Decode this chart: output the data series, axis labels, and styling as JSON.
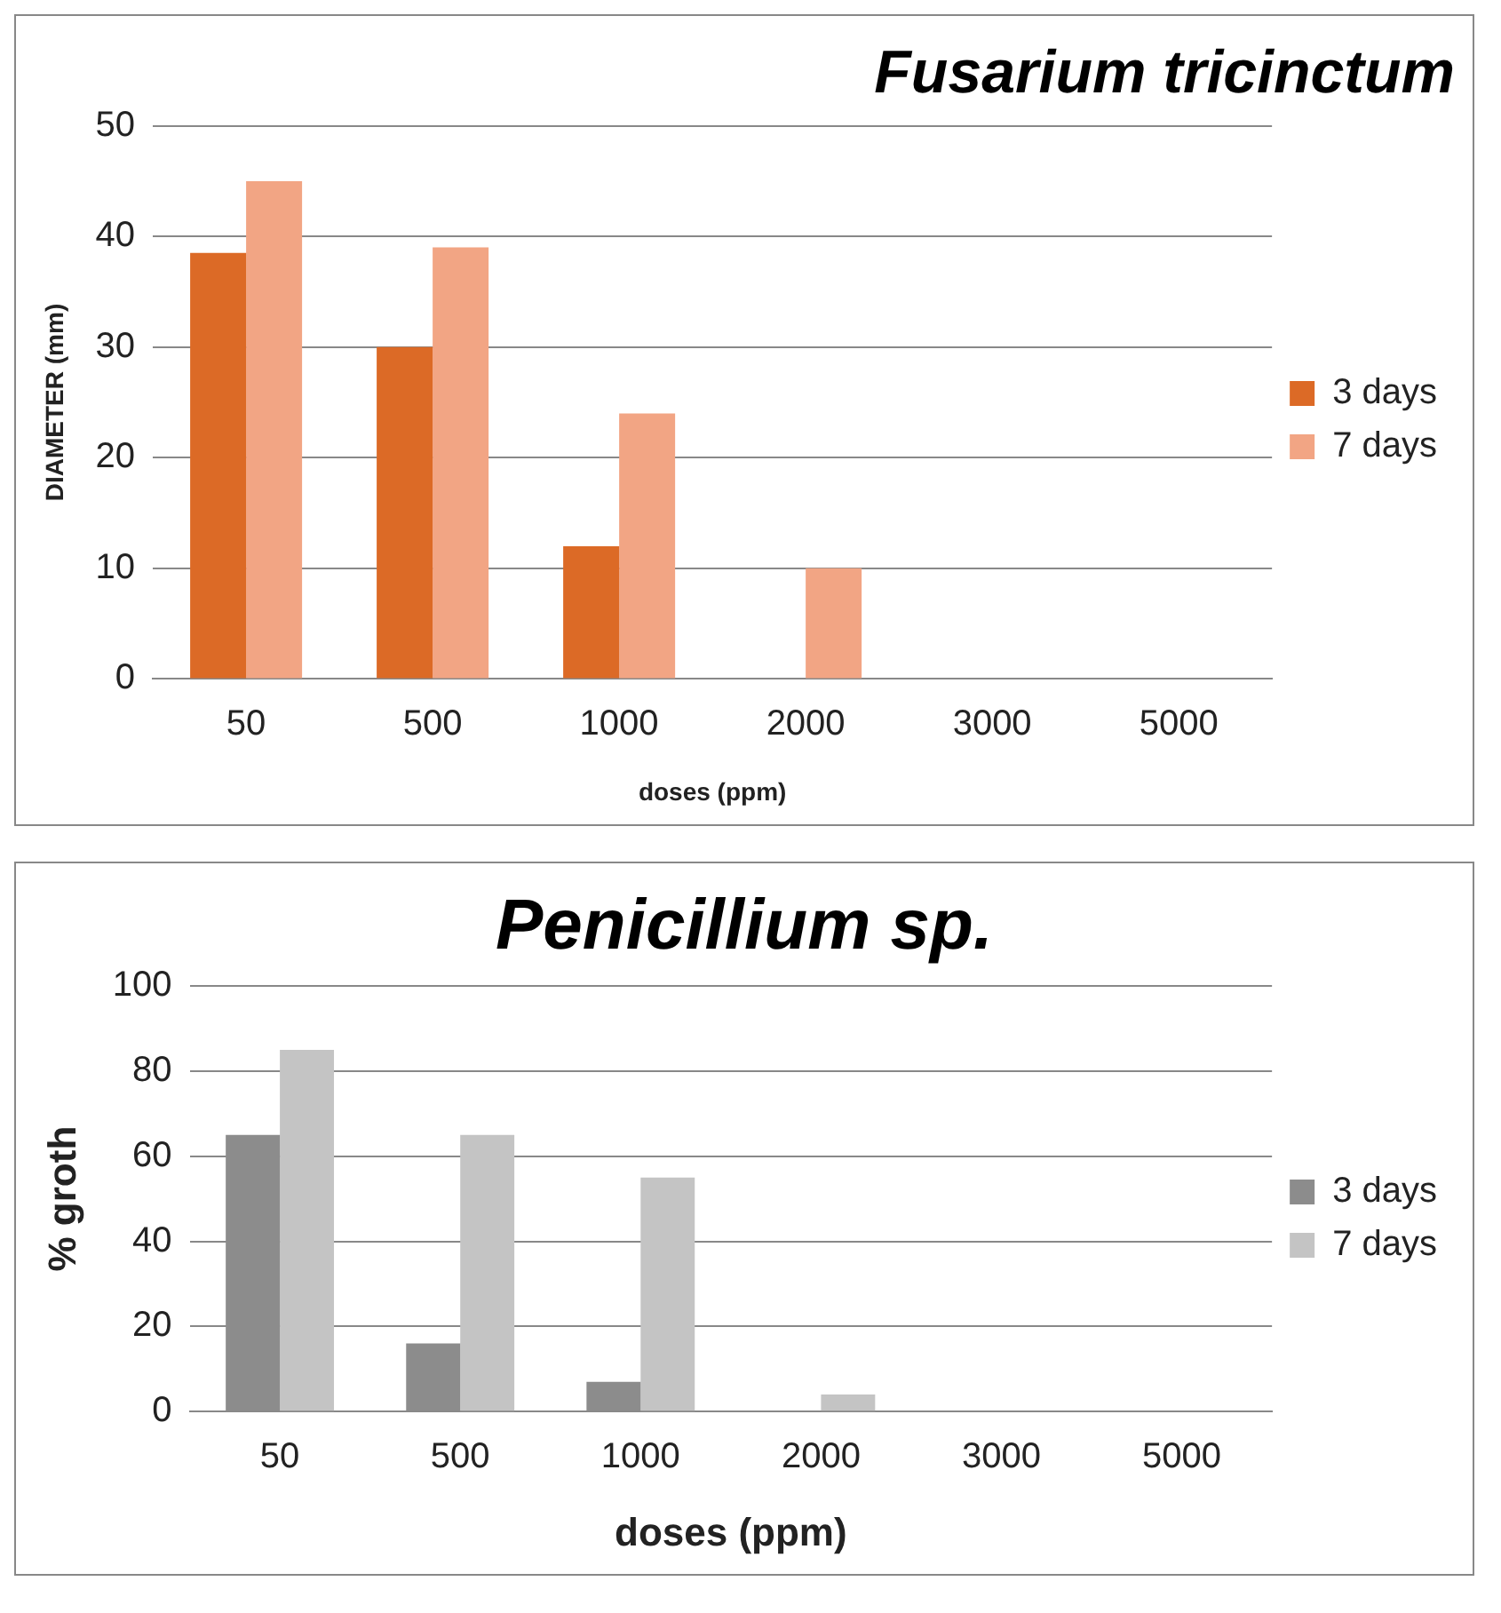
{
  "chart_data": [
    {
      "type": "bar",
      "title": "Fusarium tricinctum",
      "xlabel": "doses (ppm)",
      "ylabel": "DIAMETER (mm)",
      "categories": [
        "50",
        "500",
        "1000",
        "2000",
        "3000",
        "5000"
      ],
      "series": [
        {
          "name": "3 days",
          "color": "#dc6a26",
          "values": [
            38.5,
            30,
            12,
            0,
            0,
            0
          ]
        },
        {
          "name": "7 days",
          "color": "#f2a584",
          "values": [
            45,
            39,
            24,
            10,
            0,
            0
          ]
        }
      ],
      "ylim": [
        0,
        50
      ],
      "yticks": [
        0,
        10,
        20,
        30,
        40,
        50
      ],
      "grid": "y",
      "legend": "right"
    },
    {
      "type": "bar",
      "title": "Penicillium sp.",
      "xlabel": "doses (ppm)",
      "ylabel": "% groth",
      "categories": [
        "50",
        "500",
        "1000",
        "2000",
        "3000",
        "5000"
      ],
      "series": [
        {
          "name": "3 days",
          "color": "#8c8c8c",
          "values": [
            65,
            16,
            7,
            0,
            0,
            0
          ]
        },
        {
          "name": "7 days",
          "color": "#c4c4c4",
          "values": [
            85,
            65,
            55,
            4,
            0,
            0
          ]
        }
      ],
      "ylim": [
        0,
        100
      ],
      "yticks": [
        0,
        20,
        40,
        60,
        80,
        100
      ],
      "grid": "y",
      "legend": "right"
    }
  ]
}
